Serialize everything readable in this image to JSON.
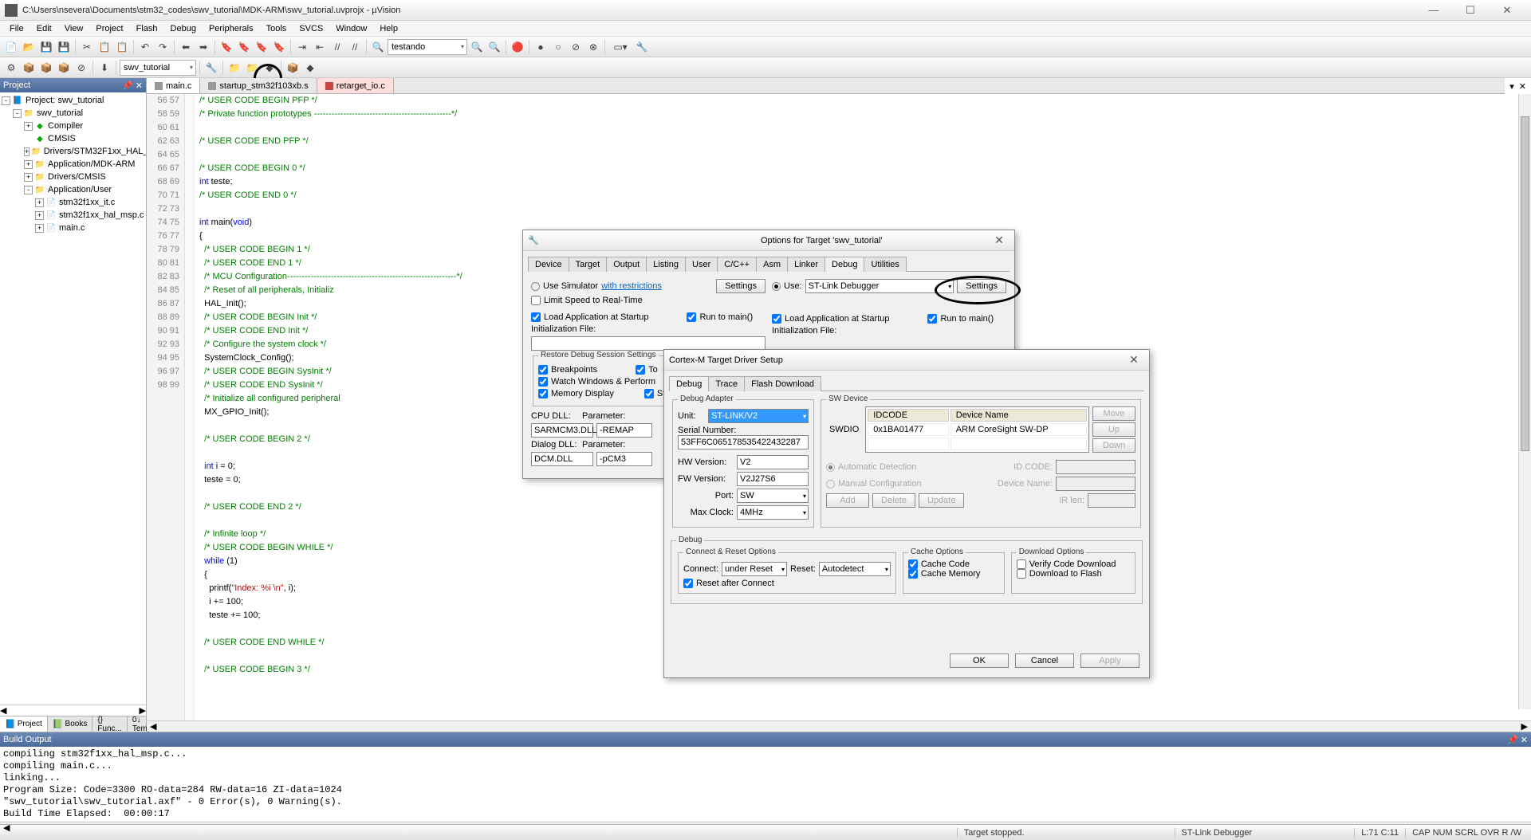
{
  "title": "C:\\Users\\nsevera\\Documents\\stm32_codes\\swv_tutorial\\MDK-ARM\\swv_tutorial.uvprojx - µVision",
  "menu": [
    "File",
    "Edit",
    "View",
    "Project",
    "Flash",
    "Debug",
    "Peripherals",
    "Tools",
    "SVCS",
    "Window",
    "Help"
  ],
  "toolbar1_combo": "testando",
  "toolbar2_combo": "swv_tutorial",
  "project": {
    "header": "Project",
    "root": "Project: swv_tutorial",
    "nodes": [
      {
        "label": "swv_tutorial",
        "indent": 1,
        "exp": "-",
        "ico": "📁"
      },
      {
        "label": "Compiler",
        "indent": 2,
        "exp": "+",
        "ico": "◆",
        "green": true
      },
      {
        "label": "CMSIS",
        "indent": 2,
        "exp": "",
        "ico": "◆",
        "green": true
      },
      {
        "label": "Drivers/STM32F1xx_HAL_Driver",
        "indent": 2,
        "exp": "+",
        "ico": "📁"
      },
      {
        "label": "Application/MDK-ARM",
        "indent": 2,
        "exp": "+",
        "ico": "📁"
      },
      {
        "label": "Drivers/CMSIS",
        "indent": 2,
        "exp": "+",
        "ico": "📁"
      },
      {
        "label": "Application/User",
        "indent": 2,
        "exp": "-",
        "ico": "📁"
      },
      {
        "label": "stm32f1xx_it.c",
        "indent": 3,
        "exp": "+",
        "ico": "📄"
      },
      {
        "label": "stm32f1xx_hal_msp.c",
        "indent": 3,
        "exp": "+",
        "ico": "📄"
      },
      {
        "label": "main.c",
        "indent": 3,
        "exp": "+",
        "ico": "📄"
      }
    ],
    "tabs": [
      {
        "label": "Project",
        "ico": "📘",
        "active": true
      },
      {
        "label": "Books",
        "ico": "📗"
      },
      {
        "label": "{} Func..."
      },
      {
        "label": "0↓ Temp..."
      }
    ]
  },
  "editor": {
    "tabs": [
      {
        "label": "main.c",
        "active": true,
        "mod": false
      },
      {
        "label": "startup_stm32f103xb.s",
        "mod": false
      },
      {
        "label": "retarget_io.c",
        "mod": true
      }
    ],
    "first_line": 56,
    "lines": [
      {
        "t": "cm",
        "s": "/* USER CODE BEGIN PFP */"
      },
      {
        "t": "cm",
        "s": "/* Private function prototypes -----------------------------------------------*/"
      },
      {
        "t": "",
        "s": ""
      },
      {
        "t": "cm",
        "s": "/* USER CODE END PFP */"
      },
      {
        "t": "",
        "s": ""
      },
      {
        "t": "cm",
        "s": "/* USER CODE BEGIN 0 */"
      },
      {
        "raw": "<span class='ty'>int</span> teste;"
      },
      {
        "t": "cm",
        "s": "/* USER CODE END 0 */"
      },
      {
        "t": "",
        "s": ""
      },
      {
        "raw": "<span class='ty'>int</span> main(<span class='ty'>void</span>)"
      },
      {
        "raw": "{"
      },
      {
        "t": "cm",
        "s": "  /* USER CODE BEGIN 1 */"
      },
      {
        "t": "cm",
        "s": "  /* USER CODE END 1 */"
      },
      {
        "t": "cm",
        "s": "  /* MCU Configuration----------------------------------------------------------*/"
      },
      {
        "t": "cm",
        "s": "  /* Reset of all peripherals, Initializ"
      },
      {
        "raw": "  HAL_Init();"
      },
      {
        "t": "cm",
        "s": "  /* USER CODE BEGIN Init */"
      },
      {
        "t": "cm",
        "s": "  /* USER CODE END Init */"
      },
      {
        "t": "cm",
        "s": "  /* Configure the system clock */"
      },
      {
        "raw": "  SystemClock_Config();"
      },
      {
        "t": "cm",
        "s": "  /* USER CODE BEGIN SysInit */"
      },
      {
        "t": "cm",
        "s": "  /* USER CODE END SysInit */"
      },
      {
        "t": "cm",
        "s": "  /* Initialize all configured peripheral"
      },
      {
        "raw": "  MX_GPIO_Init();"
      },
      {
        "t": "",
        "s": ""
      },
      {
        "t": "cm",
        "s": "  /* USER CODE BEGIN 2 */"
      },
      {
        "t": "",
        "s": ""
      },
      {
        "raw": "  <span class='ty'>int</span> i = 0;"
      },
      {
        "raw": "  teste = 0;"
      },
      {
        "t": "",
        "s": ""
      },
      {
        "t": "cm",
        "s": "  /* USER CODE END 2 */"
      },
      {
        "t": "",
        "s": ""
      },
      {
        "t": "cm",
        "s": "  /* Infinite loop */"
      },
      {
        "t": "cm",
        "s": "  /* USER CODE BEGIN WHILE */"
      },
      {
        "raw": "  <span class='kw'>while</span> (1)"
      },
      {
        "raw": "  {"
      },
      {
        "raw": "    printf(<span class='str'>\"Index: %i \\n\"</span>, i);"
      },
      {
        "raw": "    i += 100;"
      },
      {
        "raw": "    teste += 100;"
      },
      {
        "t": "",
        "s": ""
      },
      {
        "t": "cm",
        "s": "  /* USER CODE END WHILE */"
      },
      {
        "t": "",
        "s": ""
      },
      {
        "t": "cm",
        "s": "  /* USER CODE BEGIN 3 */"
      },
      {
        "t": "",
        "s": ""
      }
    ]
  },
  "build": {
    "header": "Build Output",
    "lines": [
      "compiling stm32f1xx_hal_msp.c...",
      "compiling main.c...",
      "linking...",
      "Program Size: Code=3300 RO-data=284 RW-data=16 ZI-data=1024",
      "\"swv_tutorial\\swv_tutorial.axf\" - 0 Error(s), 0 Warning(s).",
      "Build Time Elapsed:  00:00:17"
    ]
  },
  "status": {
    "target": "Target stopped.",
    "debugger": "ST-Link Debugger",
    "pos": "L:71 C:11",
    "caps": "CAP NUM SCRL OVR R /W"
  },
  "options_dlg": {
    "title": "Options for Target 'swv_tutorial'",
    "tabs": [
      "Device",
      "Target",
      "Output",
      "Listing",
      "User",
      "C/C++",
      "Asm",
      "Linker",
      "Debug",
      "Utilities"
    ],
    "active_tab": "Debug",
    "sim_label": "Use Simulator",
    "sim_link": "with restrictions",
    "settings": "Settings",
    "limit": "Limit Speed to Real-Time",
    "use_label": "Use:",
    "use_combo": "ST-Link Debugger",
    "load_app_l": "Load Application at Startup",
    "run_main_l": "Run to main()",
    "load_app_r": "Load Application at Startup",
    "run_main_r": "Run to main()",
    "init_l": "Initialization File:",
    "init_r": "Initialization File:",
    "restore": "Restore Debug Session Settings",
    "bp": "Breakpoints",
    "tb": "To",
    "watch": "Watch Windows & Perform",
    "mem": "Memory Display",
    "sy": "Sy",
    "cpu_dll": "CPU DLL:",
    "cpu_val": "SARMCM3.DLL",
    "param": "Parameter:",
    "param_val": "-REMAP",
    "dlg_dll": "Dialog DLL:",
    "dlg_val": "DCM.DLL",
    "dlg_param": "-pCM3"
  },
  "driver_dlg": {
    "title": "Cortex-M Target Driver Setup",
    "tabs": [
      "Debug",
      "Trace",
      "Flash Download"
    ],
    "active_tab": "Debug",
    "adapter_title": "Debug Adapter",
    "unit_lbl": "Unit:",
    "unit_val": "ST-LINK/V2",
    "sn_lbl": "Serial Number:",
    "sn_val": "53FF6C065178535422432287",
    "hw_lbl": "HW Version:",
    "hw_val": "V2",
    "fw_lbl": "FW Version:",
    "fw_val": "V2J27S6",
    "port_lbl": "Port:",
    "port_val": "SW",
    "max_lbl": "Max Clock:",
    "max_val": "4MHz",
    "sw_title": "SW Device",
    "idcode_h": "IDCODE",
    "devname_h": "Device Name",
    "swdio": "SWDIO",
    "idcode": "0x1BA01477",
    "devname": "ARM CoreSight SW-DP",
    "move": "Move",
    "up": "Up",
    "down": "Down",
    "auto": "Automatic Detection",
    "idcode_lbl": "ID CODE:",
    "manual": "Manual Configuration",
    "devname_lbl": "Device Name:",
    "add": "Add",
    "delete": "Delete",
    "update": "Update",
    "irlen": "IR len:",
    "debug_title": "Debug",
    "conn_title": "Connect & Reset Options",
    "connect_lbl": "Connect:",
    "connect_val": "under Reset",
    "reset_lbl": "Reset:",
    "reset_val": "Autodetect",
    "reset_after": "Reset after Connect",
    "cache_title": "Cache Options",
    "cache_code": "Cache Code",
    "cache_mem": "Cache Memory",
    "dl_title": "Download Options",
    "verify": "Verify Code Download",
    "dl_flash": "Download to Flash",
    "ok": "OK",
    "cancel": "Cancel",
    "apply": "Apply"
  }
}
